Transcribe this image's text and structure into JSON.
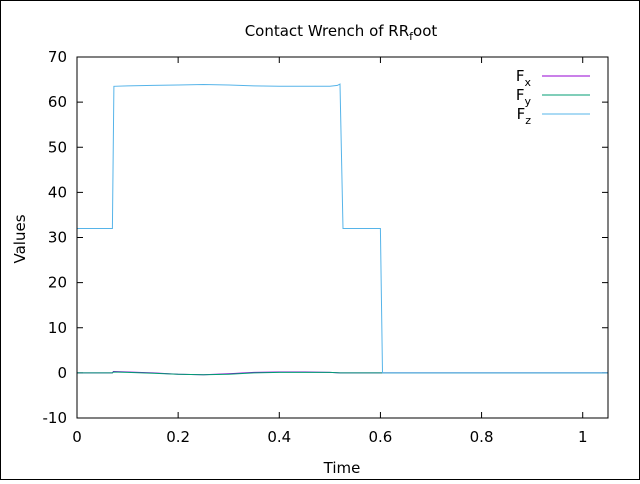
{
  "chart_data": {
    "type": "line",
    "title": {
      "main": "Contact Wrench of RR",
      "sub": "f",
      "tail": "oot"
    },
    "xlabel": "Time",
    "ylabel": "Values",
    "xlim": [
      0,
      1.05
    ],
    "ylim": [
      -10,
      70
    ],
    "xticks": [
      0,
      0.2,
      0.4,
      0.6,
      0.8,
      1
    ],
    "xtick_labels": [
      "0",
      "0.2",
      "0.4",
      "0.6",
      "0.8",
      "1"
    ],
    "yticks": [
      -10,
      0,
      10,
      20,
      30,
      40,
      50,
      60,
      70
    ],
    "ytick_labels": [
      "-10",
      "0",
      "10",
      "20",
      "30",
      "40",
      "50",
      "60",
      "70"
    ],
    "grid": false,
    "legend_position": "top-right",
    "series": [
      {
        "name": "F",
        "sub": "x",
        "color": "#9400d3",
        "x": [
          0,
          0.07,
          0.072,
          0.1,
          0.15,
          0.2,
          0.25,
          0.3,
          0.35,
          0.4,
          0.45,
          0.5,
          0.52,
          0.6,
          1.05
        ],
        "y": [
          0,
          0,
          0.3,
          0.2,
          0.0,
          -0.3,
          -0.4,
          -0.2,
          0.1,
          0.2,
          0.2,
          0.1,
          0,
          0,
          0
        ]
      },
      {
        "name": "F",
        "sub": "y",
        "color": "#009e73",
        "x": [
          0,
          0.07,
          0.072,
          0.1,
          0.15,
          0.2,
          0.25,
          0.3,
          0.35,
          0.4,
          0.45,
          0.5,
          0.52,
          0.6,
          1.05
        ],
        "y": [
          0,
          0,
          0.2,
          0.1,
          -0.1,
          -0.3,
          -0.4,
          -0.3,
          0.0,
          0.1,
          0.1,
          0.1,
          0,
          0,
          0
        ]
      },
      {
        "name": "F",
        "sub": "z",
        "color": "#56b4e9",
        "x": [
          0,
          0.07,
          0.073,
          0.1,
          0.15,
          0.2,
          0.25,
          0.3,
          0.35,
          0.4,
          0.45,
          0.5,
          0.515,
          0.52,
          0.526,
          0.6,
          0.604,
          1.05
        ],
        "y": [
          32,
          32,
          63.5,
          63.6,
          63.7,
          63.8,
          63.9,
          63.8,
          63.6,
          63.5,
          63.5,
          63.5,
          63.7,
          64.0,
          32,
          32,
          0,
          0
        ]
      }
    ]
  }
}
